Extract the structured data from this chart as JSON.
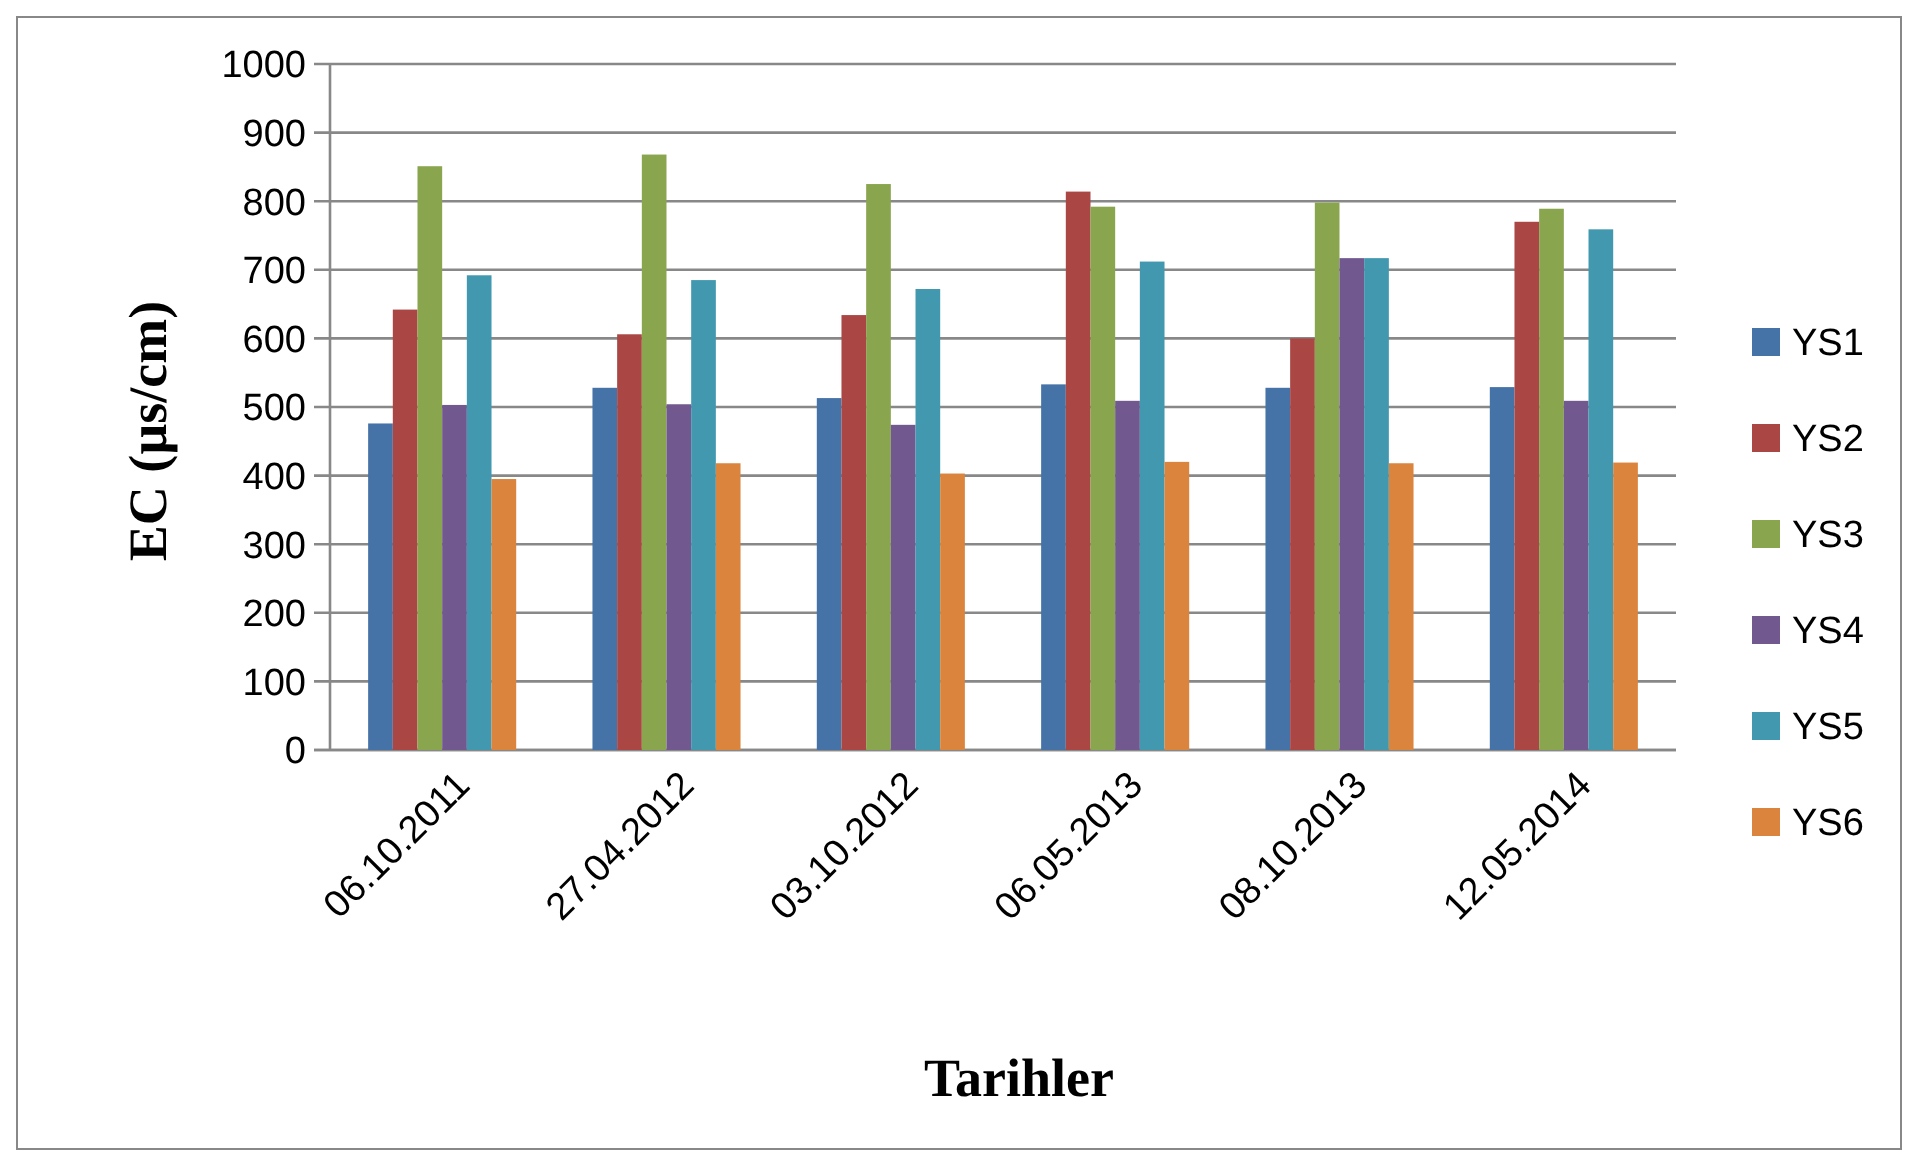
{
  "chart_data": {
    "type": "bar",
    "xlabel": "Tarihler",
    "ylabel": "EC (µs/cm)",
    "categories": [
      "06.10.2011",
      "27.04.2012",
      "03.10.2012",
      "06.05.2013",
      "08.10.2013",
      "12.05.2014"
    ],
    "series": [
      {
        "name": "YS1",
        "color": "#4572a7",
        "values": [
          476,
          528,
          513,
          533,
          528,
          529
        ]
      },
      {
        "name": "YS2",
        "color": "#aa4643",
        "values": [
          642,
          606,
          634,
          814,
          600,
          770
        ]
      },
      {
        "name": "YS3",
        "color": "#89a54e",
        "values": [
          851,
          868,
          825,
          792,
          798,
          789
        ]
      },
      {
        "name": "YS4",
        "color": "#71588f",
        "values": [
          503,
          504,
          474,
          509,
          717,
          509
        ]
      },
      {
        "name": "YS5",
        "color": "#4198af",
        "values": [
          692,
          685,
          672,
          712,
          717,
          759
        ]
      },
      {
        "name": "YS6",
        "color": "#db843d",
        "values": [
          395,
          418,
          403,
          420,
          418,
          419
        ]
      }
    ],
    "ylim": [
      0,
      1000
    ],
    "yticks": [
      0,
      100,
      200,
      300,
      400,
      500,
      600,
      700,
      800,
      900,
      1000
    ],
    "grid": "y",
    "legend": "right"
  }
}
